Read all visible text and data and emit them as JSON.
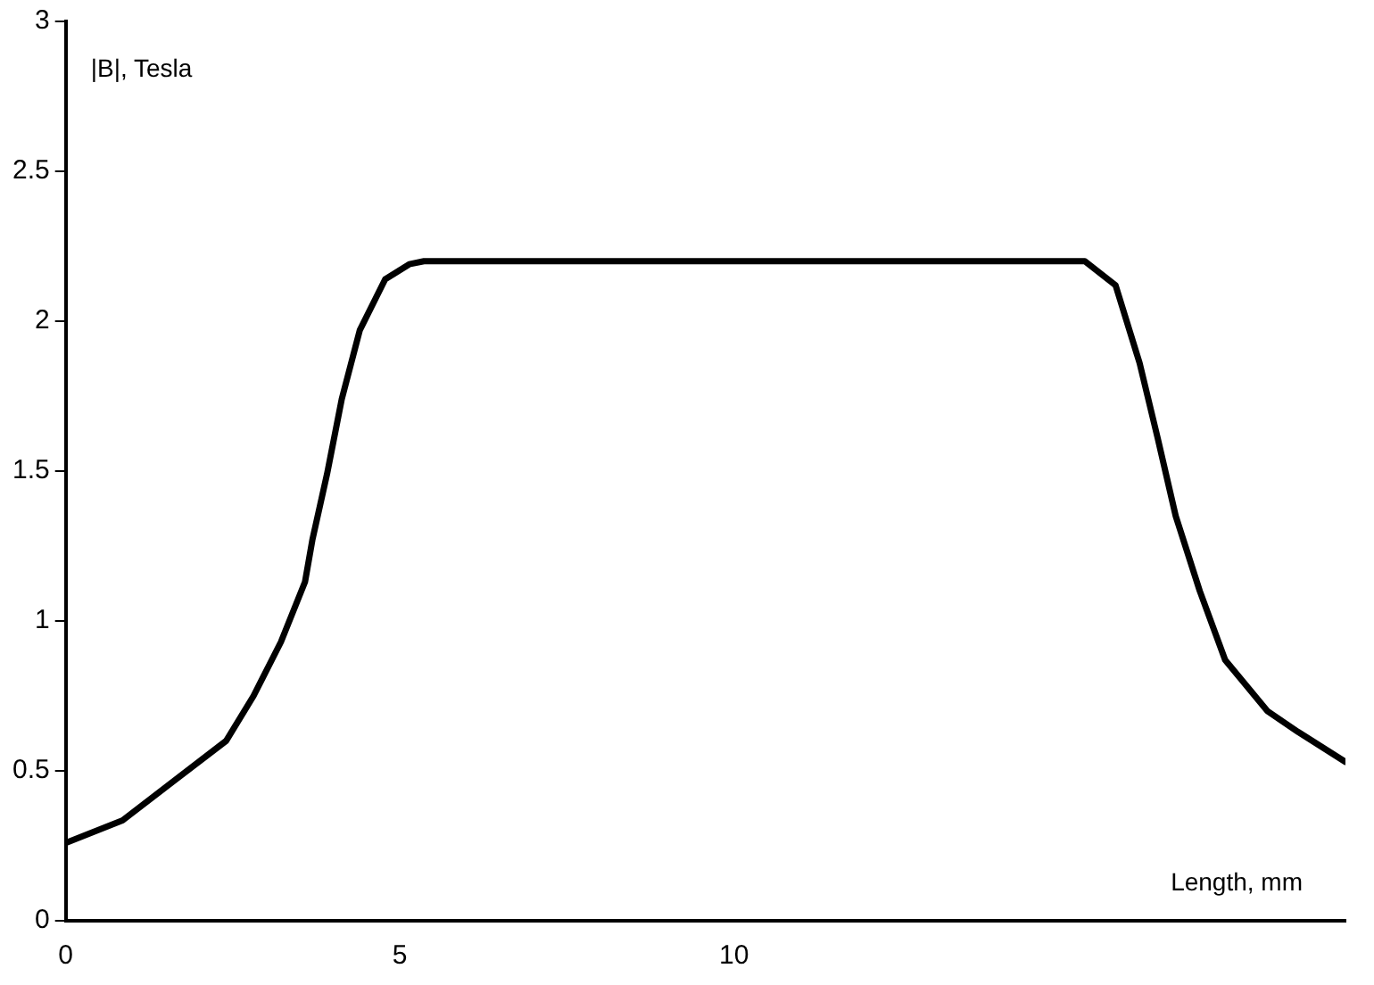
{
  "chart_data": {
    "type": "line",
    "xlabel": "Length, mm",
    "ylabel": "|B|, Tesla",
    "x": [
      0,
      0.85,
      1.64,
      2.4,
      2.81,
      3.22,
      3.58,
      3.69,
      3.91,
      4.13,
      4.4,
      4.78,
      5.14,
      5.36,
      8,
      12,
      14.84,
      15.25,
      15.71,
      16.07,
      16.34,
      16.61,
      16.97,
      17.35,
      17.98,
      18.44,
      19.15
    ],
    "series": [
      {
        "color": "#000000",
        "values": [
          0.26,
          0.335,
          0.47,
          0.6,
          0.75,
          0.93,
          1.13,
          1.27,
          1.49,
          1.74,
          1.97,
          2.14,
          2.19,
          2.2,
          2.2,
          2.2,
          2.2,
          2.2,
          2.12,
          1.86,
          1.61,
          1.35,
          1.1,
          0.87,
          0.7,
          0.63,
          0.53
        ]
      }
    ],
    "xlim": [
      0,
      19.15
    ],
    "xticks": [
      0,
      5,
      10
    ],
    "ylim": [
      0,
      3
    ],
    "yticks": [
      0,
      0.5,
      1,
      1.5,
      2,
      2.5,
      3
    ],
    "grid": false,
    "legend": false,
    "marker": "none",
    "line_style": "solid"
  }
}
